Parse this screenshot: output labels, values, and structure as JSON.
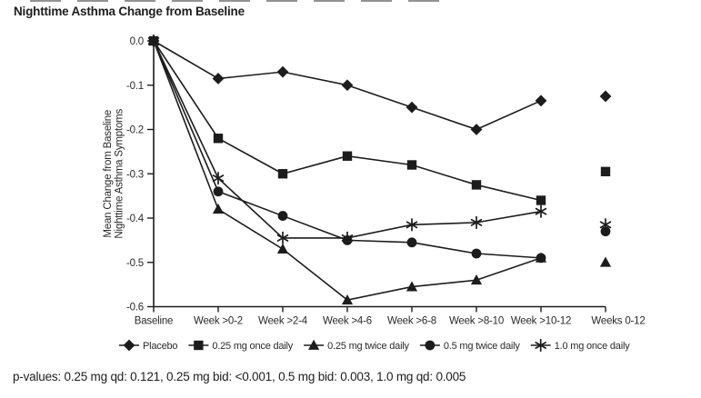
{
  "page": {
    "title": "Nighttime Asthma Change from Baseline",
    "footnote": "p-values: 0.25 mg qd: 0.121, 0.25 mg bid: <0.001, 0.5 mg bid: 0.003, 1.0 mg qd: 0.005"
  },
  "chart_data": {
    "type": "line",
    "title": "Nighttime Asthma Change from Baseline",
    "xlabel": "",
    "ylabel": "Mean Change from Baseline Nighttime Asthma Symptoms",
    "ylabel_lines": [
      "Mean Change from Baseline",
      "Nighttime Asthma Symptoms"
    ],
    "categories": [
      "Baseline",
      "Week >0-2",
      "Week >2-4",
      "Week >4-6",
      "Week >6-8",
      "Week >8-10",
      "Week >10-12",
      "Weeks 0-12"
    ],
    "y_tick_labels": [
      "0.0",
      "-0.1",
      "-0.2",
      "-0.3",
      "-0.4",
      "-0.5",
      "-0.6"
    ],
    "ylim": [
      -0.6,
      0.0
    ],
    "grid": false,
    "legend_position": "bottom",
    "layout_note": "last category (Weeks 0-12) is plotted as detached points, not connected to the lines",
    "line_color": "#1c1c1c",
    "background_color": "#ffffff",
    "series": [
      {
        "name": "Placebo",
        "marker": "diamond",
        "values": [
          0.0,
          -0.085,
          -0.07,
          -0.1,
          -0.15,
          -0.2,
          -0.135,
          -0.125
        ]
      },
      {
        "name": "0.25 mg once daily",
        "marker": "square",
        "values": [
          0.0,
          -0.22,
          -0.3,
          -0.26,
          -0.28,
          -0.325,
          -0.36,
          -0.295
        ]
      },
      {
        "name": "0.25 mg twice daily",
        "marker": "triangle",
        "values": [
          0.0,
          -0.38,
          -0.47,
          -0.585,
          -0.555,
          -0.54,
          -0.49,
          -0.5
        ]
      },
      {
        "name": "0.5 mg twice daily",
        "marker": "circle",
        "values": [
          0.0,
          -0.34,
          -0.395,
          -0.45,
          -0.455,
          -0.48,
          -0.49,
          -0.43
        ]
      },
      {
        "name": "1.0 mg once daily",
        "marker": "star",
        "values": [
          0.0,
          -0.31,
          -0.445,
          -0.445,
          -0.415,
          -0.41,
          -0.385,
          -0.415
        ]
      }
    ]
  }
}
